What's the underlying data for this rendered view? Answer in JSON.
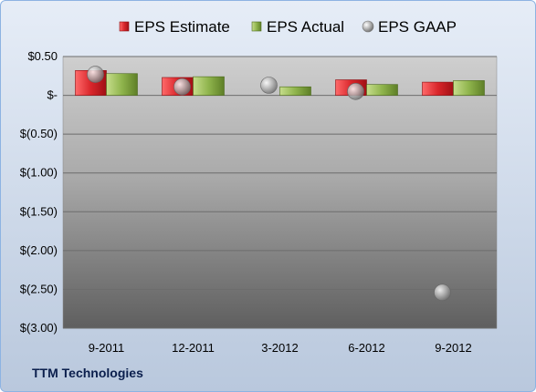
{
  "company": "TTM Technologies",
  "chart_data": {
    "type": "bar",
    "categories": [
      "9-2011",
      "12-2011",
      "3-2012",
      "6-2012",
      "9-2012"
    ],
    "series": [
      {
        "name": "EPS Estimate",
        "type": "bar",
        "color": "#d9262b",
        "values": [
          0.32,
          0.23,
          null,
          0.2,
          0.17
        ]
      },
      {
        "name": "EPS Actual",
        "type": "bar",
        "color": "#8fb44c",
        "values": [
          0.28,
          0.24,
          0.11,
          0.14,
          0.19
        ]
      },
      {
        "name": "EPS GAAP",
        "type": "scatter",
        "color": "#b0b0b0",
        "values": [
          0.27,
          0.11,
          0.13,
          0.05,
          -2.54
        ]
      }
    ],
    "y_ticks": [
      {
        "value": 0.5,
        "label": "$0.50"
      },
      {
        "value": 0,
        "label": "$-"
      },
      {
        "value": -0.5,
        "label": "$(0.50)"
      },
      {
        "value": -1.0,
        "label": "$(1.00)"
      },
      {
        "value": -1.5,
        "label": "$(1.50)"
      },
      {
        "value": -2.0,
        "label": "$(2.00)"
      },
      {
        "value": -2.5,
        "label": "$(2.50)"
      },
      {
        "value": -3.0,
        "label": "$(3.00)"
      }
    ],
    "ylim": [
      -3.0,
      0.5
    ],
    "grid": true,
    "legend_position": "top"
  }
}
